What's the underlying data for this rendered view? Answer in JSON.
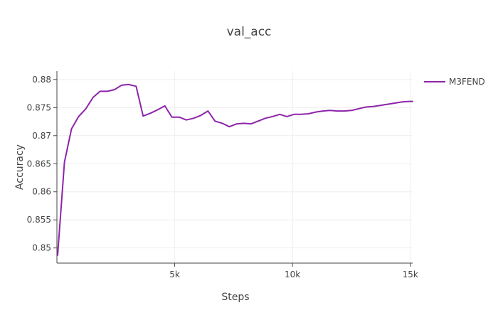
{
  "chart_data": {
    "type": "line",
    "title": "val_acc",
    "xlabel": "Steps",
    "ylabel": "Accuracy",
    "xlim": [
      0,
      15100
    ],
    "ylim": [
      0.8473,
      0.8815
    ],
    "x_ticks": [
      5000,
      10000,
      15000
    ],
    "x_tick_labels": [
      "5k",
      "10k",
      "15k"
    ],
    "y_ticks": [
      0.85,
      0.855,
      0.86,
      0.865,
      0.87,
      0.875,
      0.88
    ],
    "y_tick_labels": [
      "0.85",
      "0.855",
      "0.86",
      "0.865",
      "0.87",
      "0.875",
      "0.88"
    ],
    "grid": true,
    "legend_position": "top-right",
    "series": [
      {
        "name": "M3FEND",
        "color": "#8e24aa",
        "x": [
          30,
          320,
          620,
          920,
          1230,
          1530,
          1830,
          2140,
          2440,
          2750,
          3050,
          3360,
          3660,
          3970,
          4270,
          4580,
          4880,
          5190,
          5490,
          5800,
          6100,
          6410,
          6710,
          7020,
          7320,
          7630,
          7930,
          8240,
          8540,
          8850,
          9150,
          9460,
          9760,
          10070,
          10370,
          10680,
          10980,
          11290,
          11590,
          11900,
          12200,
          12510,
          12810,
          13120,
          13420,
          13730,
          14030,
          14340,
          14640,
          14950,
          15100
        ],
        "y": [
          0.8487,
          0.8653,
          0.8712,
          0.8734,
          0.8748,
          0.8768,
          0.8779,
          0.8779,
          0.8782,
          0.879,
          0.8791,
          0.8788,
          0.8735,
          0.874,
          0.8746,
          0.8753,
          0.8733,
          0.8733,
          0.8728,
          0.8731,
          0.8736,
          0.8744,
          0.8726,
          0.8722,
          0.8716,
          0.8721,
          0.8722,
          0.8721,
          0.8726,
          0.8731,
          0.8734,
          0.8738,
          0.8734,
          0.8738,
          0.8738,
          0.8739,
          0.8742,
          0.8744,
          0.8745,
          0.8744,
          0.8744,
          0.8745,
          0.8748,
          0.8751,
          0.8752,
          0.8754,
          0.8756,
          0.8758,
          0.876,
          0.8761,
          0.8761
        ]
      }
    ]
  }
}
